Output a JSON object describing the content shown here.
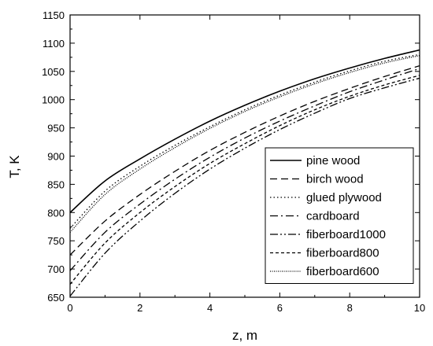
{
  "chart_data": {
    "type": "line",
    "xlabel": "z, m",
    "ylabel": "T, K",
    "xlim": [
      0,
      10
    ],
    "ylim": [
      650,
      1150
    ],
    "xticks": [
      0,
      2,
      4,
      6,
      8,
      10
    ],
    "yticks": [
      650,
      700,
      750,
      800,
      850,
      900,
      950,
      1000,
      1050,
      1100,
      1150
    ],
    "grid": false,
    "legend_position": "bottom-right",
    "x": [
      0,
      1,
      2,
      3,
      4,
      5,
      6,
      7,
      8,
      9,
      10
    ],
    "series": [
      {
        "name": "pine wood",
        "style": "solid",
        "color": "#000000",
        "values": [
          800,
          856,
          895,
          930,
          962,
          990,
          1015,
          1037,
          1056,
          1073,
          1088
        ]
      },
      {
        "name": "birch wood",
        "style": "dashed",
        "color": "#000000",
        "values": [
          725,
          785,
          832,
          873,
          910,
          942,
          971,
          997,
          1020,
          1041,
          1060
        ]
      },
      {
        "name": "glued plywood",
        "style": "dotted",
        "color": "#000000",
        "values": [
          772,
          838,
          882,
          919,
          952,
          982,
          1008,
          1031,
          1051,
          1068,
          1080
        ]
      },
      {
        "name": "cardboard",
        "style": "dashdot",
        "color": "#000000",
        "values": [
          697,
          765,
          815,
          859,
          898,
          932,
          962,
          989,
          1014,
          1035,
          1055
        ]
      },
      {
        "name": "fiberboard1000",
        "style": "dashdotdot",
        "color": "#000000",
        "values": [
          652,
          728,
          785,
          834,
          877,
          914,
          947,
          976,
          1002,
          1021,
          1038
        ]
      },
      {
        "name": "fiberboard800",
        "style": "shortdash",
        "color": "#000000",
        "values": [
          673,
          746,
          800,
          846,
          887,
          922,
          954,
          982,
          1006,
          1026,
          1043
        ]
      },
      {
        "name": "fiberboard600",
        "style": "shortdot",
        "color": "#000000",
        "values": [
          765,
          832,
          877,
          915,
          949,
          979,
          1005,
          1028,
          1048,
          1065,
          1078
        ]
      }
    ]
  }
}
